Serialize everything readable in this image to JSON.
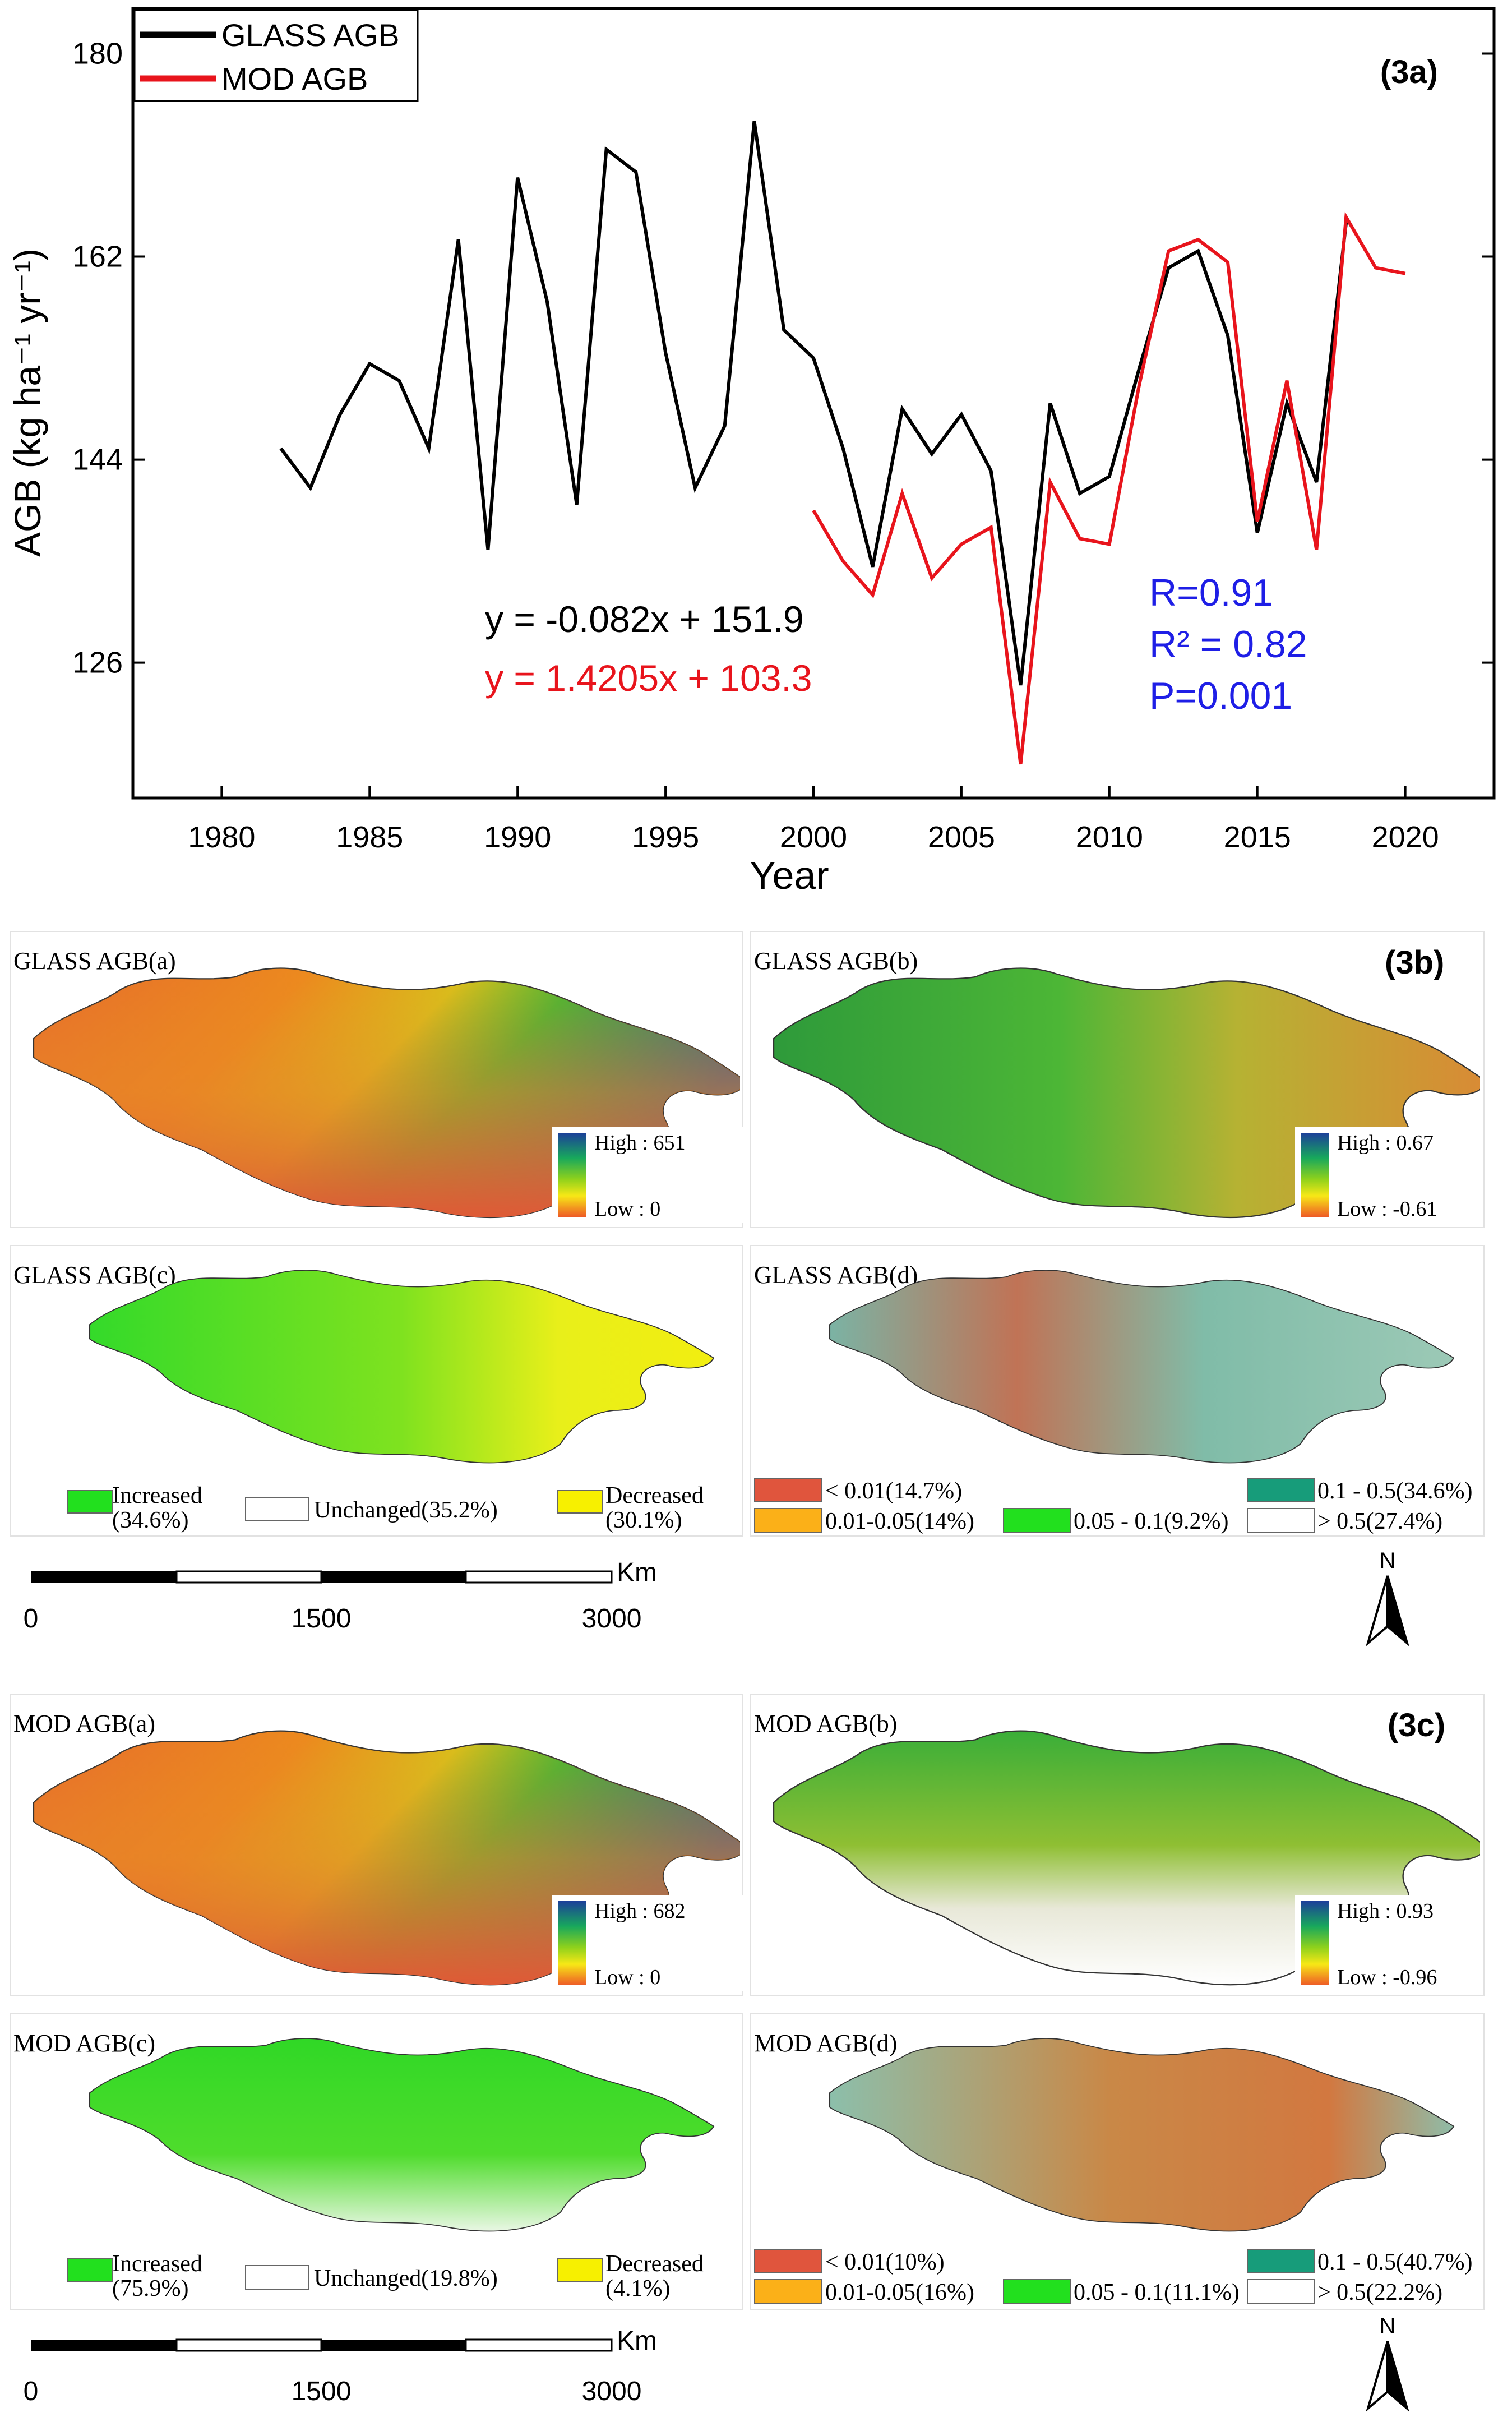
{
  "chart_data": [
    {
      "type": "line",
      "panel_tag": "(3a)",
      "xlabel": "Year",
      "ylabel": "AGB (kg ha⁻¹ yr⁻¹)",
      "xlim": [
        1977,
        2023
      ],
      "ylim": [
        114,
        184
      ],
      "x_ticks": [
        1980,
        1985,
        1990,
        1995,
        2000,
        2005,
        2010,
        2015,
        2020
      ],
      "y_ticks": [
        126,
        144,
        162,
        180
      ],
      "series": [
        {
          "name": "GLASS AGB",
          "color": "#000000",
          "x": [
            1982,
            1983,
            1984,
            1985,
            1986,
            1987,
            1988,
            1989,
            1990,
            1991,
            1992,
            1993,
            1994,
            1995,
            1996,
            1997,
            1998,
            1999,
            2000,
            2001,
            2002,
            2003,
            2004,
            2005,
            2006,
            2007,
            2008,
            2009,
            2010,
            2011,
            2012,
            2013,
            2014,
            2015,
            2016,
            2017,
            2018
          ],
          "values": [
            145,
            141.5,
            148,
            152.5,
            151,
            145,
            163.5,
            136,
            169,
            158,
            140,
            171.5,
            169.5,
            153.5,
            141.5,
            147,
            174,
            155.5,
            153,
            145,
            134.5,
            148.5,
            144.5,
            148,
            143,
            124,
            149,
            141,
            142.5,
            152,
            161,
            162.5,
            155,
            137.5,
            149,
            142,
            165
          ]
        },
        {
          "name": "MOD AGB",
          "color": "#e8141c",
          "x": [
            2000,
            2001,
            2002,
            2003,
            2004,
            2005,
            2006,
            2007,
            2008,
            2009,
            2010,
            2011,
            2012,
            2013,
            2014,
            2015,
            2016,
            2017,
            2018,
            2019,
            2020
          ],
          "values": [
            139.5,
            135,
            132,
            141,
            133.5,
            136.5,
            138,
            117,
            142,
            137,
            136.5,
            150.5,
            162.5,
            163.5,
            161.5,
            138.5,
            151,
            136,
            165.5,
            161,
            160.5
          ]
        }
      ],
      "annotations": {
        "eq_glass": "y = -0.082x + 151.9",
        "eq_mod": "y = 1.4205x + 103.3",
        "r": "R=0.91",
        "r2": "R² = 0.82",
        "p": "P=0.001"
      },
      "colors": {
        "black": "#000000",
        "red": "#e8141c",
        "blue": "#1e1ee6"
      }
    }
  ],
  "panel_3b": {
    "tag": "(3b)",
    "map_a": {
      "title": "GLASS AGB(a)",
      "high": "High : 651",
      "low": "Low : 0"
    },
    "map_b": {
      "title": "GLASS AGB(b)",
      "high": "High : 0.67",
      "low": "Low : -0.61"
    },
    "map_c": {
      "title": "GLASS AGB(c)",
      "legend": [
        {
          "label": "Increased",
          "sub": "(34.6%)",
          "color": "#22e01e"
        },
        {
          "label": "Unchanged(35.2%)",
          "sub": "",
          "color": "#ffffff"
        },
        {
          "label": "Decreased",
          "sub": "(30.1%)",
          "color": "#f7f000"
        }
      ]
    },
    "map_d": {
      "title": "GLASS AGB(d)",
      "legend": [
        {
          "label": "< 0.01(14.7%)",
          "color": "#e0553d"
        },
        {
          "label": "0.1 - 0.5(34.6%)",
          "color": "#179c7a"
        },
        {
          "label": "0.01-0.05(14%)",
          "color": "#fbb018"
        },
        {
          "label": "0.05 - 0.1(9.2%)",
          "color": "#22e01e"
        },
        {
          "label": "> 0.5(27.4%)",
          "color": "#ffffff"
        }
      ]
    }
  },
  "panel_3c": {
    "tag": "(3c)",
    "map_a": {
      "title": "MOD AGB(a)",
      "high": "High : 682",
      "low": "Low : 0"
    },
    "map_b": {
      "title": "MOD AGB(b)",
      "high": "High : 0.93",
      "low": "Low : -0.96"
    },
    "map_c": {
      "title": "MOD AGB(c)",
      "legend": [
        {
          "label": "Increased",
          "sub": "(75.9%)",
          "color": "#22e01e"
        },
        {
          "label": "Unchanged(19.8%)",
          "sub": "",
          "color": "#ffffff"
        },
        {
          "label": "Decreased",
          "sub": "(4.1%)",
          "color": "#f7f000"
        }
      ]
    },
    "map_d": {
      "title": "MOD AGB(d)",
      "legend": [
        {
          "label": "< 0.01(10%)",
          "color": "#e0553d"
        },
        {
          "label": "0.1 - 0.5(40.7%)",
          "color": "#179c7a"
        },
        {
          "label": "0.01-0.05(16%)",
          "color": "#fbb018"
        },
        {
          "label": "0.05 - 0.1(11.1%)",
          "color": "#22e01e"
        },
        {
          "label": "> 0.5(22.2%)",
          "color": "#ffffff"
        }
      ]
    }
  },
  "scalebar": {
    "unit": "Km",
    "labels": [
      "0",
      "1500",
      "3000"
    ]
  },
  "north": "N"
}
